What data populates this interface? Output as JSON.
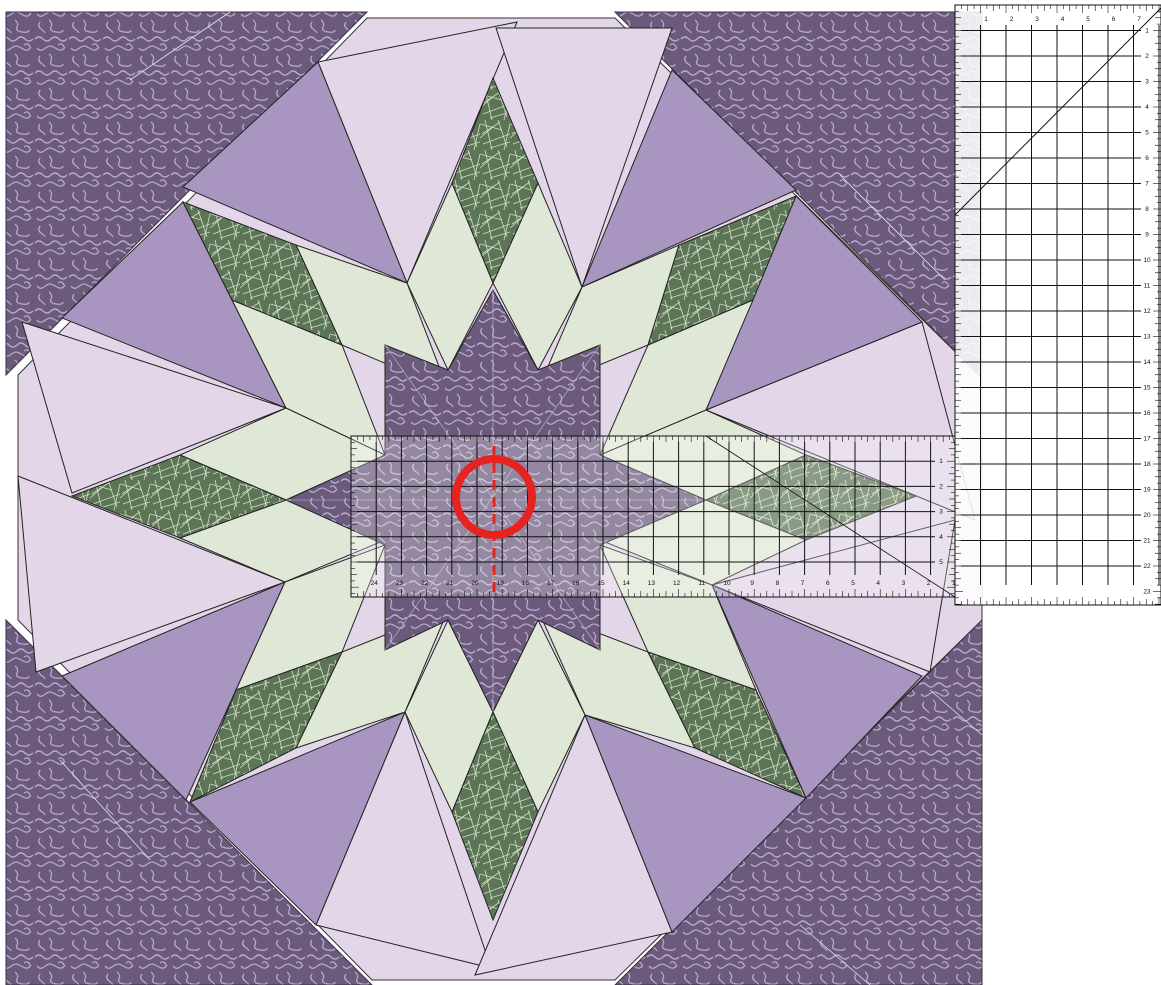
{
  "colors": {
    "dark_purple": "#6b5a7c",
    "dark_purple_pattern": "#b9a8cc",
    "mid_purple": "#a895c0",
    "light_lavender": "#e3d6e8",
    "dark_green": "#5d7557",
    "dark_green_pattern": "#cfe0c5",
    "pale_green": "#dfe8d6",
    "ruler_line": "#111111",
    "marker_red": "#e52320"
  },
  "icons": {
    "center_marker": "red-circle-marker",
    "center_line": "red-dashed-line"
  },
  "square_ruler": {
    "top_numbers": [
      "7",
      "6",
      "5",
      "4",
      "3",
      "2",
      "1"
    ],
    "side_numbers": [
      "1",
      "2",
      "3",
      "4",
      "5",
      "6",
      "7",
      "8",
      "9",
      "10",
      "11",
      "12",
      "13",
      "14",
      "15",
      "16",
      "17",
      "18",
      "19",
      "20",
      "21",
      "22",
      "23"
    ]
  },
  "rect_ruler": {
    "bottom_numbers": [
      "24",
      "23",
      "22",
      "21",
      "20",
      "19",
      "18",
      "17",
      "16",
      "15",
      "14",
      "13",
      "12",
      "11",
      "10",
      "9",
      "8",
      "7",
      "6",
      "5",
      "4",
      "3",
      "2",
      "1"
    ],
    "side_numbers": [
      "1",
      "2",
      "3",
      "4",
      "5"
    ]
  }
}
